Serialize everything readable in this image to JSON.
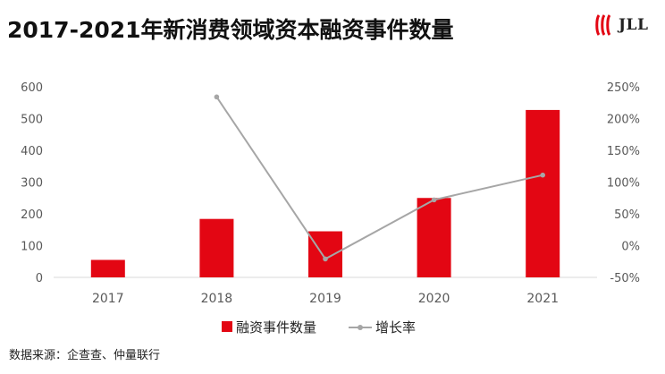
{
  "title": "2017-2021年新消费领域资本融资事件数量",
  "logo": {
    "text": "JLL",
    "icon": "jll-logo-icon",
    "color": "#e30613"
  },
  "source": "数据来源：企查查、仲量联行",
  "chart_data": {
    "type": "bar",
    "categories": [
      "2017",
      "2018",
      "2019",
      "2020",
      "2021"
    ],
    "series": [
      {
        "name": "融资事件数量",
        "type": "bar",
        "axis": "left",
        "color": "#e30613",
        "values": [
          55,
          184,
          145,
          250,
          527
        ]
      },
      {
        "name": "增长率",
        "type": "line",
        "axis": "right",
        "color": "#a6a6a6",
        "values": [
          null,
          2.34,
          -0.21,
          0.72,
          1.11
        ]
      }
    ],
    "y_left": {
      "ticks": [
        "0",
        "100",
        "200",
        "300",
        "400",
        "500",
        "600"
      ],
      "min": 0,
      "max": 600
    },
    "y_right": {
      "ticks": [
        "-50%",
        "0%",
        "50%",
        "100%",
        "150%",
        "200%",
        "250%"
      ],
      "min": -0.5,
      "max": 2.5
    },
    "grid": false,
    "legend_position": "bottom"
  }
}
